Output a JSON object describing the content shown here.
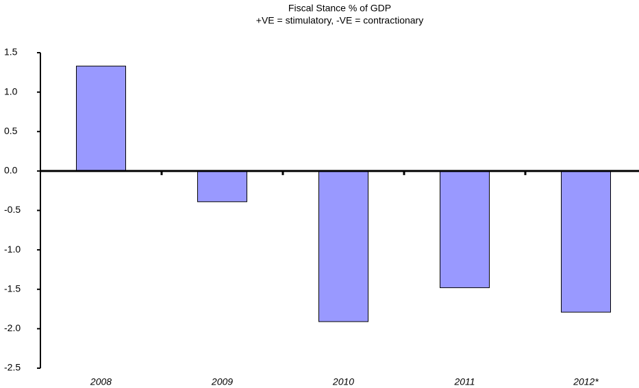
{
  "chart_data": {
    "type": "bar",
    "title": "Fiscal Stance % of GDP",
    "subtitle": "+VE = stimulatory, -VE = contractionary",
    "categories": [
      "2008",
      "2009",
      "2010",
      "2011",
      "2012*"
    ],
    "values": [
      1.33,
      -0.39,
      -1.91,
      -1.48,
      -1.79
    ],
    "color": "#9999ff",
    "ylim": [
      -2.5,
      1.5
    ],
    "yticks": [
      1.5,
      {
        "value": 1,
        "label": "1.0"
      },
      0.5,
      {
        "value": 0,
        "label": "0.0"
      },
      -0.5,
      {
        "value": -1,
        "label": "-1.0"
      },
      -1.5,
      {
        "value": -2,
        "label": "-2.0"
      },
      -2.5
    ],
    "grid": false
  }
}
